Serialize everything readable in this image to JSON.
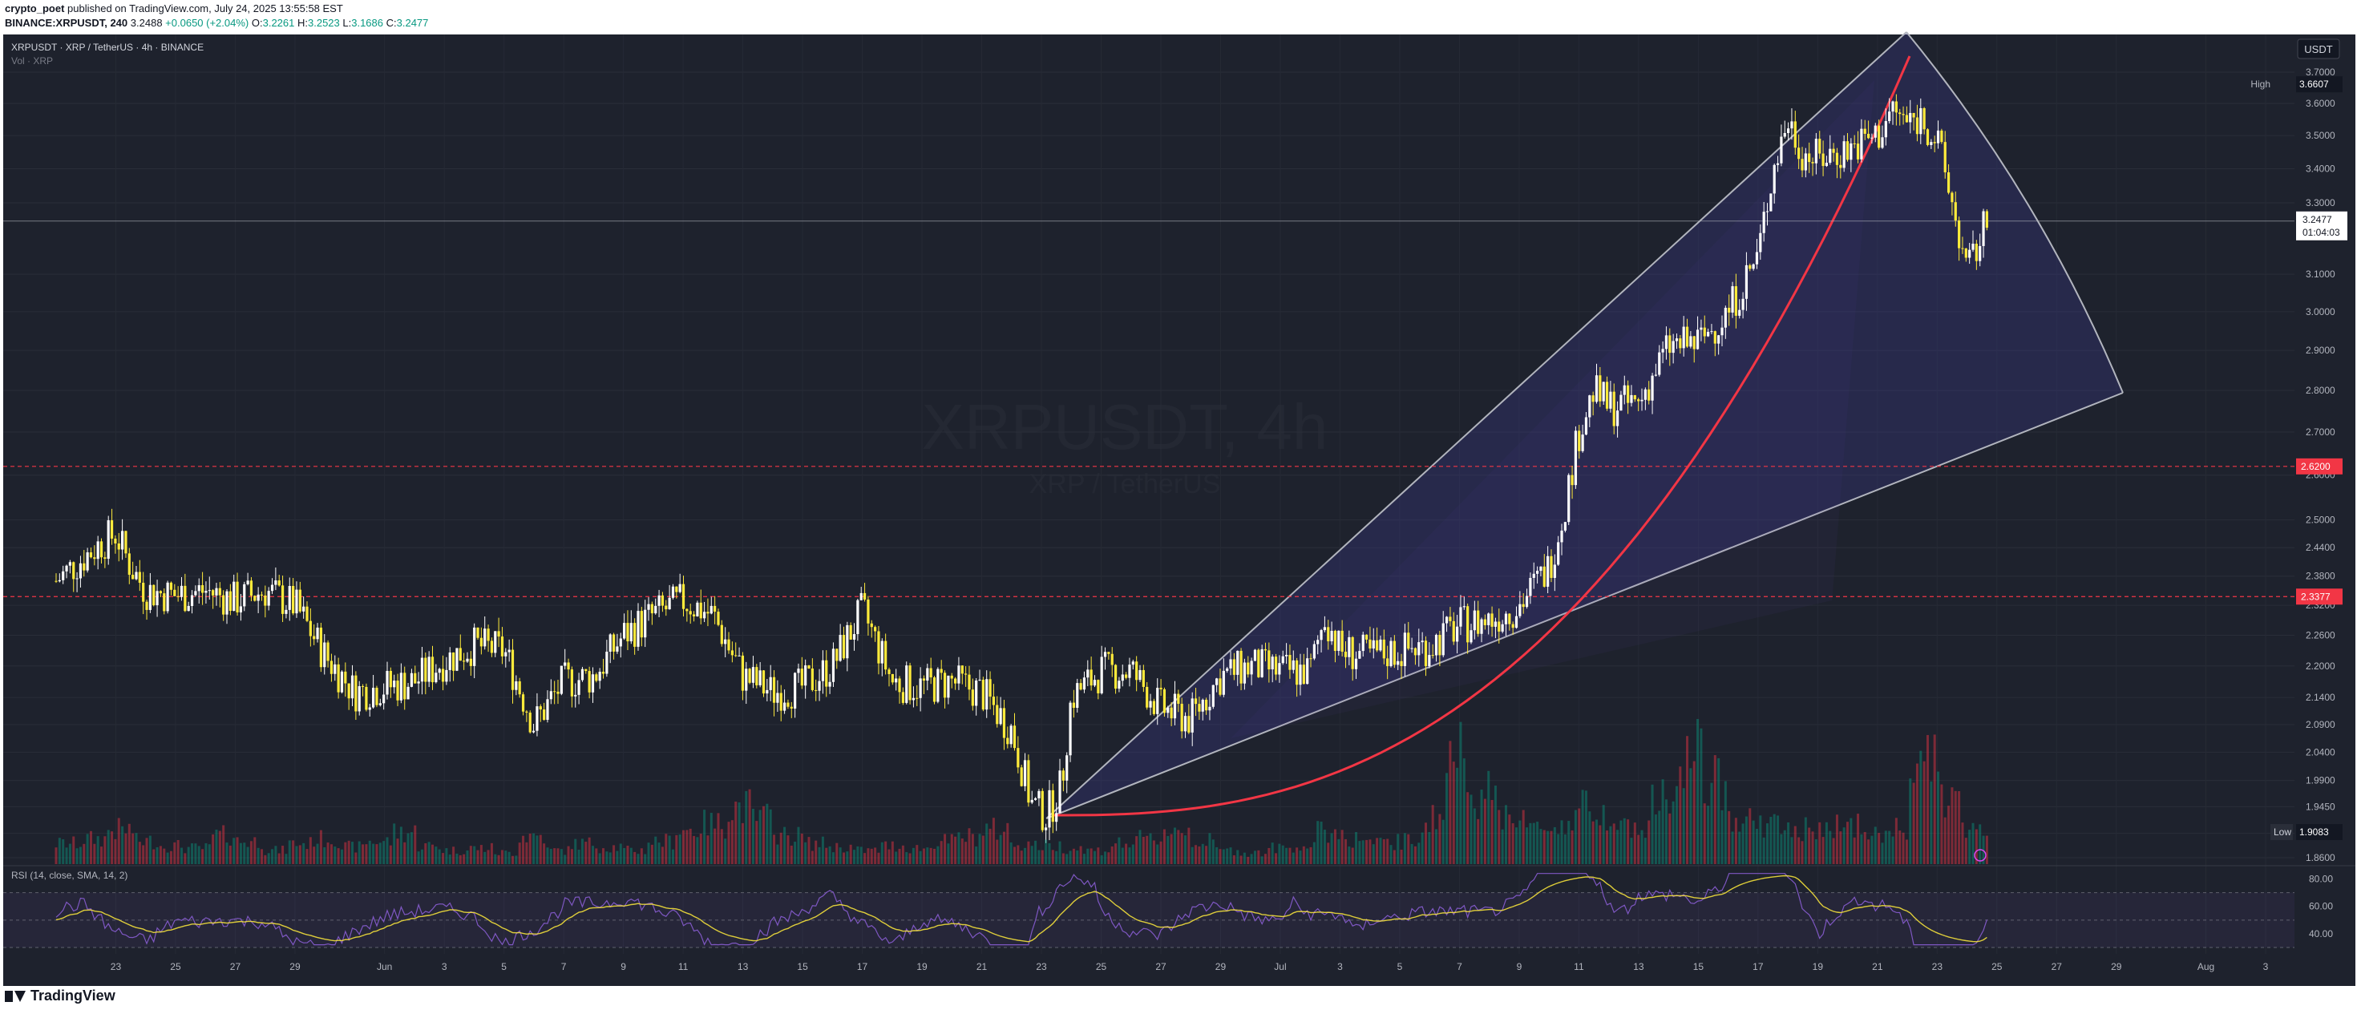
{
  "header": {
    "publisher": "crypto_poet",
    "published_text": "published on TradingView.com, July 24, 2025 13:55:58 EST",
    "symbol_line": "BINANCE:XRPUSDT, 240",
    "last": "3.2488",
    "change": "+0.0650 (+2.04%)",
    "o_label": "O:",
    "o": "3.2261",
    "h_label": "H:",
    "h": "3.2523",
    "l_label": "L:",
    "l": "3.1686",
    "c_label": "C:",
    "c": "3.2477"
  },
  "legend": {
    "title": "XRPUSDT · XRP / TetherUS · 4h · BINANCE",
    "volume": "Vol · XRP"
  },
  "watermark": {
    "symbol": "XRPUSDT, 4h",
    "name": "XRP / TetherUS"
  },
  "currency": "USDT",
  "footer": {
    "brand": "TradingView"
  },
  "chart_data": {
    "type": "candlestick",
    "interval": "4h",
    "x_start": "2025-05-21",
    "x_end": "2025-08-03",
    "price_axis": {
      "ticks": [
        "3.7000",
        "3.6000",
        "3.5000",
        "3.4000",
        "3.3000",
        "3.1000",
        "3.0000",
        "2.9000",
        "2.8000",
        "2.7000",
        "2.6000",
        "2.5000",
        "2.4400",
        "2.3800",
        "2.3200",
        "2.2600",
        "2.2000",
        "2.1400",
        "2.0900",
        "2.0400",
        "1.9900",
        "1.9450",
        "1.9000",
        "1.8600"
      ],
      "log_scale": true
    },
    "x_ticks": [
      "23",
      "25",
      "27",
      "29",
      "Jun",
      "3",
      "5",
      "7",
      "9",
      "11",
      "13",
      "15",
      "17",
      "19",
      "21",
      "23",
      "25",
      "27",
      "29",
      "Jul",
      "3",
      "5",
      "7",
      "9",
      "11",
      "13",
      "15",
      "17",
      "19",
      "21",
      "23",
      "25",
      "27",
      "29",
      "Aug",
      "3"
    ],
    "labels": {
      "high": {
        "label": "High",
        "value": "3.6607"
      },
      "low": {
        "label": "Low",
        "value": "1.9083"
      },
      "current": {
        "value": "3.2477",
        "countdown": "01:04:03"
      },
      "level_1": {
        "value": "2.6200"
      },
      "level_2": {
        "value": "2.3377"
      }
    },
    "price_path": [
      [
        "2025-05-21T00:00",
        2.37
      ],
      [
        "2025-05-22T12:00",
        2.45
      ],
      [
        "2025-05-23T00:00",
        2.47
      ],
      [
        "2025-05-23T12:00",
        2.4
      ],
      [
        "2025-05-24T00:00",
        2.35
      ],
      [
        "2025-05-25T00:00",
        2.34
      ],
      [
        "2025-05-26T00:00",
        2.35
      ],
      [
        "2025-05-27T00:00",
        2.33
      ],
      [
        "2025-05-28T00:00",
        2.35
      ],
      [
        "2025-05-29T00:00",
        2.32
      ],
      [
        "2025-05-30T00:00",
        2.22
      ],
      [
        "2025-05-31T00:00",
        2.15
      ],
      [
        "2025-06-01T00:00",
        2.16
      ],
      [
        "2025-06-02T00:00",
        2.17
      ],
      [
        "2025-06-03T00:00",
        2.21
      ],
      [
        "2025-06-04T00:00",
        2.24
      ],
      [
        "2025-06-05T00:00",
        2.23
      ],
      [
        "2025-06-06T00:00",
        2.09
      ],
      [
        "2025-06-07T00:00",
        2.17
      ],
      [
        "2025-06-08T00:00",
        2.18
      ],
      [
        "2025-06-09T00:00",
        2.26
      ],
      [
        "2025-06-10T00:00",
        2.3
      ],
      [
        "2025-06-11T00:00",
        2.33
      ],
      [
        "2025-06-12T00:00",
        2.3
      ],
      [
        "2025-06-13T00:00",
        2.18
      ],
      [
        "2025-06-14T00:00",
        2.15
      ],
      [
        "2025-06-15T00:00",
        2.16
      ],
      [
        "2025-06-16T00:00",
        2.2
      ],
      [
        "2025-06-17T00:00",
        2.31
      ],
      [
        "2025-06-18T00:00",
        2.17
      ],
      [
        "2025-06-19T00:00",
        2.16
      ],
      [
        "2025-06-20T00:00",
        2.17
      ],
      [
        "2025-06-21T00:00",
        2.15
      ],
      [
        "2025-06-22T00:00",
        2.08
      ],
      [
        "2025-06-22T16:00",
        1.95
      ],
      [
        "2025-06-23T04:00",
        1.93
      ],
      [
        "2025-06-23T16:00",
        1.98
      ],
      [
        "2025-06-24T00:00",
        2.14
      ],
      [
        "2025-06-25T00:00",
        2.19
      ],
      [
        "2025-06-26T00:00",
        2.19
      ],
      [
        "2025-06-27T00:00",
        2.12
      ],
      [
        "2025-06-28T00:00",
        2.1
      ],
      [
        "2025-06-29T00:00",
        2.18
      ],
      [
        "2025-06-30T00:00",
        2.2
      ],
      [
        "2025-07-01T00:00",
        2.19
      ],
      [
        "2025-07-02T00:00",
        2.19
      ],
      [
        "2025-07-02T12:00",
        2.3
      ],
      [
        "2025-07-03T00:00",
        2.23
      ],
      [
        "2025-07-04T00:00",
        2.22
      ],
      [
        "2025-07-05T00:00",
        2.23
      ],
      [
        "2025-07-06T00:00",
        2.24
      ],
      [
        "2025-07-07T00:00",
        2.28
      ],
      [
        "2025-07-08T00:00",
        2.29
      ],
      [
        "2025-07-09T00:00",
        2.32
      ],
      [
        "2025-07-10T00:00",
        2.4
      ],
      [
        "2025-07-10T12:00",
        2.52
      ],
      [
        "2025-07-11T00:00",
        2.7
      ],
      [
        "2025-07-11T12:00",
        2.8
      ],
      [
        "2025-07-12T00:00",
        2.76
      ],
      [
        "2025-07-13T00:00",
        2.77
      ],
      [
        "2025-07-14T00:00",
        2.91
      ],
      [
        "2025-07-15T00:00",
        2.92
      ],
      [
        "2025-07-16T00:00",
        3.0
      ],
      [
        "2025-07-17T00:00",
        3.15
      ],
      [
        "2025-07-17T12:00",
        3.4
      ],
      [
        "2025-07-18T00:00",
        3.55
      ],
      [
        "2025-07-18T12:00",
        3.45
      ],
      [
        "2025-07-19T00:00",
        3.43
      ],
      [
        "2025-07-20T00:00",
        3.46
      ],
      [
        "2025-07-21T00:00",
        3.5
      ],
      [
        "2025-07-21T12:00",
        3.58
      ],
      [
        "2025-07-22T00:00",
        3.54
      ],
      [
        "2025-07-22T12:00",
        3.56
      ],
      [
        "2025-07-23T00:00",
        3.48
      ],
      [
        "2025-07-23T12:00",
        3.3
      ],
      [
        "2025-07-24T00:00",
        3.1
      ],
      [
        "2025-07-24T16:00",
        3.2477
      ]
    ],
    "volume_path": [
      0.18,
      0.22,
      0.3,
      0.2,
      0.16,
      0.14,
      0.25,
      0.2,
      0.12,
      0.18,
      0.22,
      0.15,
      0.2,
      0.28,
      0.16,
      0.12,
      0.14,
      0.1,
      0.25,
      0.12,
      0.18,
      0.15,
      0.12,
      0.2,
      0.3,
      0.35,
      0.5,
      0.4,
      0.25,
      0.18,
      0.15,
      0.12,
      0.16,
      0.14,
      0.2,
      0.24,
      0.3,
      0.18,
      0.16,
      0.14,
      0.12,
      0.18,
      0.22,
      0.3,
      0.2,
      0.12,
      0.1,
      0.14,
      0.16,
      0.28,
      0.22,
      0.18,
      0.2,
      0.4,
      0.95,
      0.6,
      0.45,
      0.3,
      0.35,
      0.5,
      0.45,
      0.3,
      0.55,
      0.95,
      0.7,
      0.4,
      0.35,
      0.3,
      0.28,
      0.35,
      0.25,
      0.3,
      0.85,
      0.6,
      0.3
    ],
    "rsi": {
      "label": "RSI (14, close, SMA, 14, 2)",
      "ticks": [
        "80.00",
        "60.00",
        "40.00"
      ],
      "upper": 70,
      "lower": 30
    }
  }
}
